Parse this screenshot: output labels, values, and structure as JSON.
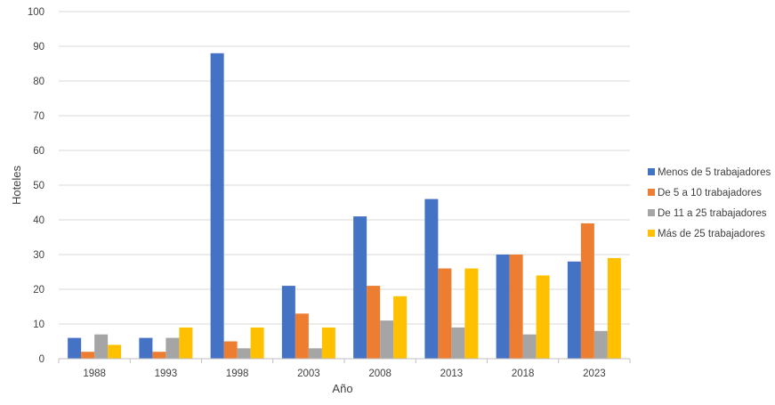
{
  "chart_data": {
    "type": "bar",
    "title": "",
    "xlabel": "Año",
    "ylabel": "Hoteles",
    "ylim": [
      0,
      100
    ],
    "yticks": [
      0,
      10,
      20,
      30,
      40,
      50,
      60,
      70,
      80,
      90,
      100
    ],
    "grid": "horizontal",
    "legend_position": "right",
    "categories": [
      "1988",
      "1993",
      "1998",
      "2003",
      "2008",
      "2013",
      "2018",
      "2023"
    ],
    "series": [
      {
        "name": "Menos de 5 trabajadores",
        "color": "#4472C4",
        "values": [
          6,
          6,
          88,
          21,
          41,
          46,
          30,
          28
        ]
      },
      {
        "name": "De 5 a 10 trabajadores",
        "color": "#ED7D31",
        "values": [
          2,
          2,
          5,
          13,
          21,
          26,
          30,
          39
        ]
      },
      {
        "name": "De 11 a 25 trabajadores",
        "color": "#A5A5A5",
        "values": [
          7,
          6,
          3,
          3,
          11,
          9,
          7,
          8
        ]
      },
      {
        "name": "Más de 25 trabajadores",
        "color": "#FFC000",
        "values": [
          4,
          9,
          9,
          9,
          18,
          26,
          24,
          29
        ]
      }
    ]
  }
}
